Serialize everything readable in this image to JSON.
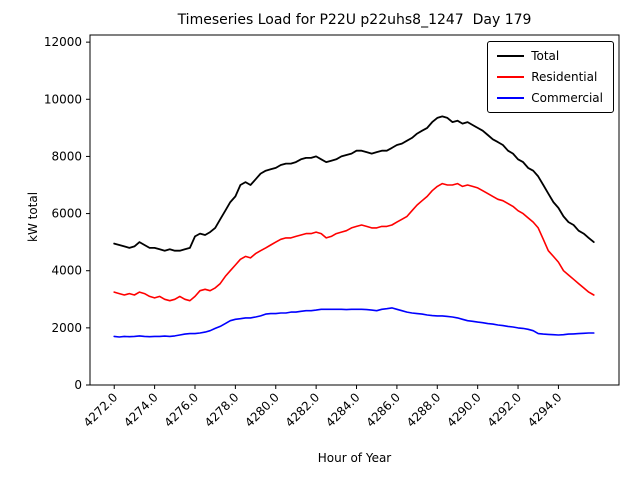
{
  "figure": {
    "title": "Timeseries Load for P22U p22uhs8_1247  Day 179",
    "xlabel": "Hour of Year",
    "ylabel": "kW total"
  },
  "legend": {
    "items": [
      {
        "label": "Total",
        "color": "#000000"
      },
      {
        "label": "Residential",
        "color": "#ff0000"
      },
      {
        "label": "Commercial",
        "color": "#0000ff"
      }
    ]
  },
  "chart_data": {
    "type": "line",
    "title": "Timeseries Load for P22U p22uhs8_1247  Day 179",
    "xlabel": "Hour of Year",
    "ylabel": "kW total",
    "grid": false,
    "legend_position": "upper right",
    "xlim": [
      4270.8,
      4297.0
    ],
    "ylim": [
      0,
      12250
    ],
    "xticks": [
      4272,
      4274,
      4276,
      4278,
      4280,
      4282,
      4284,
      4286,
      4288,
      4290,
      4292,
      4294
    ],
    "xtick_labels": [
      "4272.0",
      "4274.0",
      "4276.0",
      "4278.0",
      "4280.0",
      "4282.0",
      "4284.0",
      "4286.0",
      "4288.0",
      "4290.0",
      "4292.0",
      "4294.0"
    ],
    "yticks": [
      0,
      2000,
      4000,
      6000,
      8000,
      10000,
      12000
    ],
    "ytick_labels": [
      "0",
      "2000",
      "4000",
      "6000",
      "8000",
      "10000",
      "12000"
    ],
    "x": [
      4272.0,
      4272.25,
      4272.5,
      4272.75,
      4273.0,
      4273.25,
      4273.5,
      4273.75,
      4274.0,
      4274.25,
      4274.5,
      4274.75,
      4275.0,
      4275.25,
      4275.5,
      4275.75,
      4276.0,
      4276.25,
      4276.5,
      4276.75,
      4277.0,
      4277.25,
      4277.5,
      4277.75,
      4278.0,
      4278.25,
      4278.5,
      4278.75,
      4279.0,
      4279.25,
      4279.5,
      4279.75,
      4280.0,
      4280.25,
      4280.5,
      4280.75,
      4281.0,
      4281.25,
      4281.5,
      4281.75,
      4282.0,
      4282.25,
      4282.5,
      4282.75,
      4283.0,
      4283.25,
      4283.5,
      4283.75,
      4284.0,
      4284.25,
      4284.5,
      4284.75,
      4285.0,
      4285.25,
      4285.5,
      4285.75,
      4286.0,
      4286.25,
      4286.5,
      4286.75,
      4287.0,
      4287.25,
      4287.5,
      4287.75,
      4288.0,
      4288.25,
      4288.5,
      4288.75,
      4289.0,
      4289.25,
      4289.5,
      4289.75,
      4290.0,
      4290.25,
      4290.5,
      4290.75,
      4291.0,
      4291.25,
      4291.5,
      4291.75,
      4292.0,
      4292.25,
      4292.5,
      4292.75,
      4293.0,
      4293.25,
      4293.5,
      4293.75,
      4294.0,
      4294.25,
      4294.5,
      4294.75,
      4295.0,
      4295.25,
      4295.5,
      4295.75
    ],
    "series": [
      {
        "name": "Total",
        "color": "#000000",
        "values": [
          4950,
          4900,
          4850,
          4800,
          4850,
          5000,
          4900,
          4800,
          4800,
          4750,
          4700,
          4750,
          4700,
          4700,
          4750,
          4800,
          5200,
          5300,
          5250,
          5350,
          5500,
          5800,
          6100,
          6400,
          6600,
          7000,
          7100,
          7000,
          7200,
          7400,
          7500,
          7550,
          7600,
          7700,
          7750,
          7750,
          7800,
          7900,
          7950,
          7950,
          8000,
          7900,
          7800,
          7850,
          7900,
          8000,
          8050,
          8100,
          8200,
          8200,
          8150,
          8100,
          8150,
          8200,
          8200,
          8300,
          8400,
          8450,
          8550,
          8650,
          8800,
          8900,
          9000,
          9200,
          9350,
          9400,
          9350,
          9200,
          9250,
          9150,
          9200,
          9100,
          9000,
          8900,
          8750,
          8600,
          8500,
          8400,
          8200,
          8100,
          7900,
          7800,
          7600,
          7500,
          7300,
          7000,
          6700,
          6400,
          6200,
          5900,
          5700,
          5600,
          5400,
          5300,
          5150,
          5000
        ]
      },
      {
        "name": "Residential",
        "color": "#ff0000",
        "values": [
          3250,
          3200,
          3150,
          3200,
          3150,
          3250,
          3200,
          3100,
          3050,
          3100,
          3000,
          2950,
          3000,
          3100,
          3000,
          2950,
          3100,
          3300,
          3350,
          3300,
          3400,
          3550,
          3800,
          4000,
          4200,
          4400,
          4500,
          4450,
          4600,
          4700,
          4800,
          4900,
          5000,
          5100,
          5150,
          5150,
          5200,
          5250,
          5300,
          5300,
          5350,
          5300,
          5150,
          5200,
          5300,
          5350,
          5400,
          5500,
          5550,
          5600,
          5550,
          5500,
          5500,
          5550,
          5550,
          5600,
          5700,
          5800,
          5900,
          6100,
          6300,
          6450,
          6600,
          6800,
          6950,
          7050,
          7000,
          7000,
          7050,
          6950,
          7000,
          6950,
          6900,
          6800,
          6700,
          6600,
          6500,
          6450,
          6350,
          6250,
          6100,
          6000,
          5850,
          5700,
          5500,
          5100,
          4700,
          4500,
          4300,
          4000,
          3850,
          3700,
          3550,
          3400,
          3250,
          3150
        ]
      },
      {
        "name": "Commercial",
        "color": "#0000ff",
        "values": [
          1700,
          1680,
          1700,
          1690,
          1700,
          1720,
          1700,
          1690,
          1700,
          1700,
          1710,
          1700,
          1720,
          1750,
          1780,
          1800,
          1800,
          1820,
          1850,
          1900,
          1980,
          2050,
          2150,
          2250,
          2300,
          2320,
          2350,
          2350,
          2380,
          2420,
          2480,
          2500,
          2500,
          2520,
          2520,
          2550,
          2550,
          2580,
          2600,
          2600,
          2620,
          2650,
          2650,
          2650,
          2650,
          2650,
          2640,
          2650,
          2650,
          2650,
          2640,
          2620,
          2600,
          2650,
          2670,
          2700,
          2650,
          2600,
          2550,
          2520,
          2500,
          2480,
          2450,
          2430,
          2420,
          2420,
          2400,
          2380,
          2350,
          2300,
          2250,
          2230,
          2200,
          2180,
          2150,
          2130,
          2100,
          2080,
          2050,
          2030,
          2000,
          1980,
          1950,
          1900,
          1800,
          1780,
          1770,
          1760,
          1750,
          1760,
          1780,
          1790,
          1800,
          1810,
          1820,
          1820
        ]
      }
    ]
  }
}
